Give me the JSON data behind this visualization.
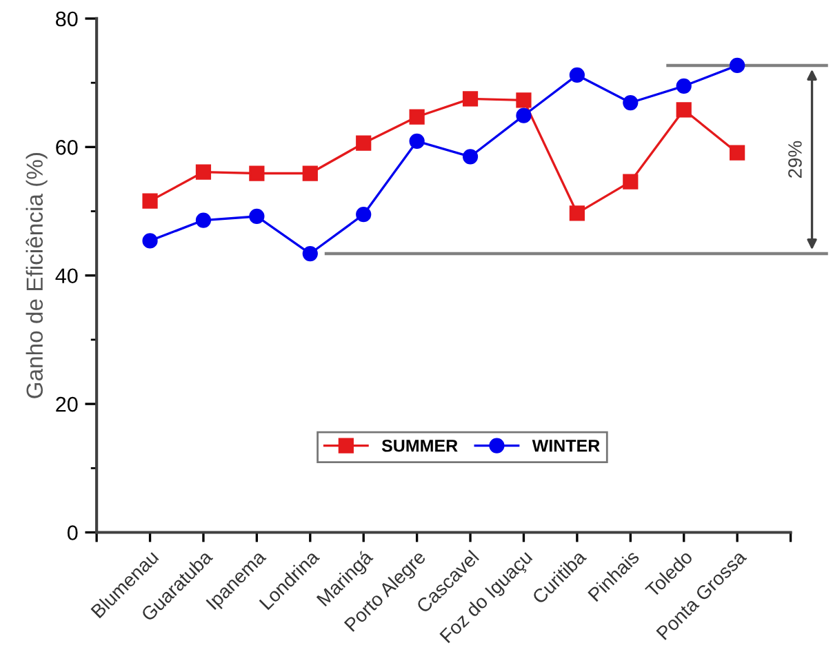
{
  "chart_data": {
    "type": "line",
    "ylabel": "Ganho de Eficiência (%)",
    "categories": [
      "Blumenau",
      "Guaratuba",
      "Ipanema",
      "Londrina",
      "Maringá",
      "Porto Alegre",
      "Cascavel",
      "Foz do Iguaçu",
      "Curitiba",
      "Pinhais",
      "Toledo",
      "Ponta Grossa"
    ],
    "series": [
      {
        "name": "SUMMER",
        "color": "#e41a1c",
        "marker": "square",
        "values": [
          51.6,
          56.1,
          55.9,
          55.9,
          60.6,
          64.7,
          67.5,
          67.3,
          49.7,
          54.6,
          65.8,
          59.1
        ]
      },
      {
        "name": "WINTER",
        "color": "#0000ee",
        "marker": "circle",
        "values": [
          45.4,
          48.6,
          49.2,
          43.4,
          49.5,
          60.9,
          58.5,
          64.9,
          71.2,
          66.9,
          69.5,
          72.7
        ]
      }
    ],
    "ylim": [
      0,
      80
    ],
    "yticks": [
      0,
      20,
      40,
      60,
      80
    ],
    "ref_lines": [
      {
        "axis": "y",
        "value": 43.4,
        "color": "#808080"
      },
      {
        "axis": "y",
        "value": 72.7,
        "color": "#808080"
      }
    ],
    "annotations": [
      "29%"
    ],
    "legend": "bottom",
    "grid": false,
    "line_style": "solid"
  }
}
